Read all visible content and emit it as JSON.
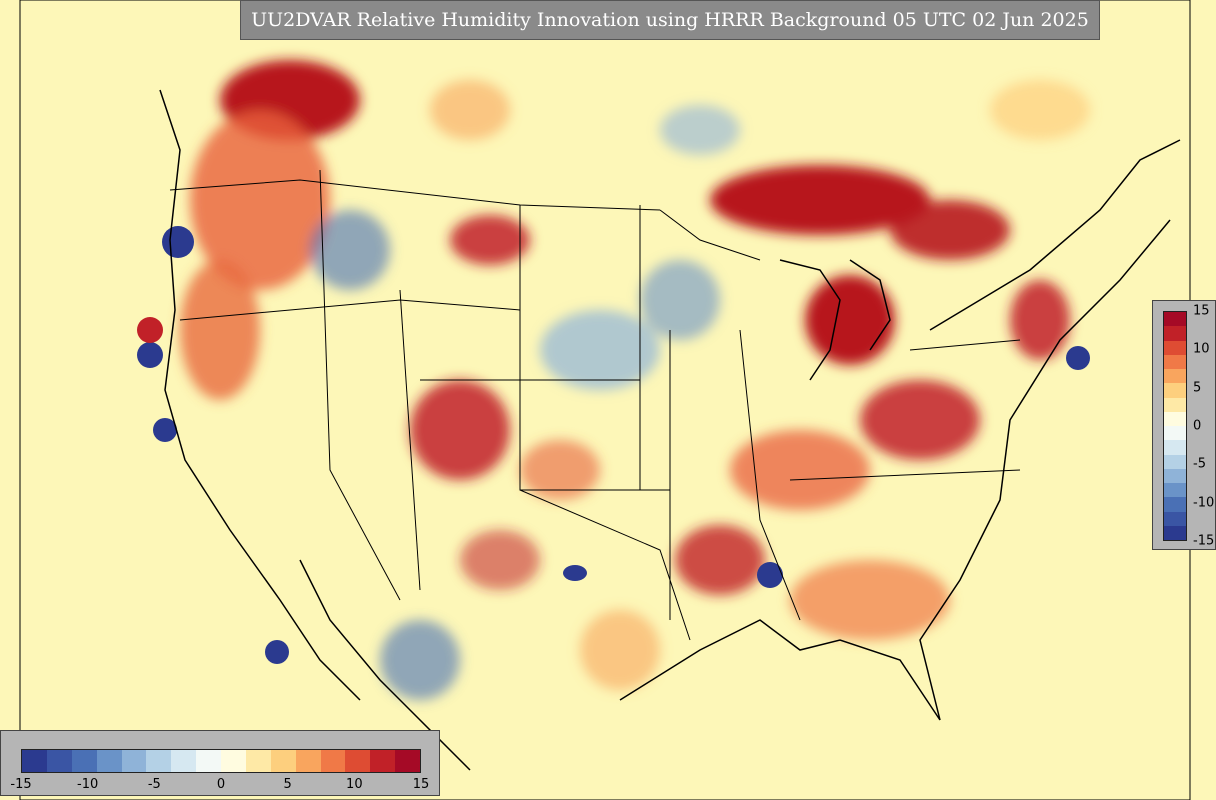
{
  "title": "UU2DVAR Relative Humidity Innovation using HRRR Background 05 UTC 02 Jun 2025",
  "colorbar": {
    "min": -15,
    "max": 15,
    "vertical_ticks": [
      "15",
      "10",
      "5",
      "0",
      "-5",
      "-10",
      "-15"
    ],
    "horizontal_ticks": [
      "-15",
      "-10",
      "-5",
      "0",
      "5",
      "10",
      "15"
    ],
    "colors": [
      "#2b3a8f",
      "#3a55a4",
      "#4a70b5",
      "#6a93c8",
      "#8fb3d8",
      "#b4d1e6",
      "#d6e8f1",
      "#f3f9f6",
      "#fffce0",
      "#fee9a6",
      "#fdcf7e",
      "#f9a55e",
      "#f07947",
      "#de4c33",
      "#c12128",
      "#a50a26"
    ]
  }
}
